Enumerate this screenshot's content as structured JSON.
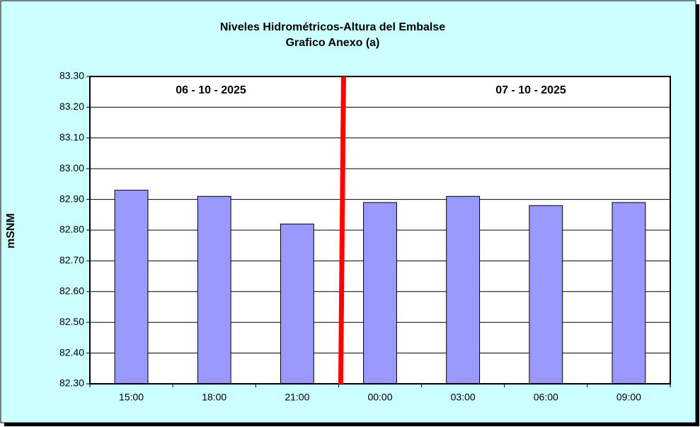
{
  "chart_data": {
    "type": "bar",
    "title": "Niveles Hidrométricos-Altura del Embalse",
    "subtitle": "Grafico Anexo (a)",
    "y_label": "mSNM",
    "annotations": [
      "06 - 10 - 2025",
      "07 - 10 - 2025"
    ],
    "categories": [
      "15:00",
      "18:00",
      "21:00",
      "00:00",
      "03:00",
      "06:00",
      "09:00"
    ],
    "values": [
      82.93,
      82.91,
      82.82,
      82.89,
      82.91,
      82.88,
      82.89
    ],
    "color": "#9999ff",
    "ylim": [
      82.3,
      83.3
    ],
    "yticks": [
      {
        "value": 82.3,
        "label": "82.30"
      },
      {
        "value": 82.4,
        "label": "82.40"
      },
      {
        "value": 82.5,
        "label": "82.50"
      },
      {
        "value": 82.6,
        "label": "82.60"
      },
      {
        "value": 82.7,
        "label": "82.70"
      },
      {
        "value": 82.8,
        "label": "82.80"
      },
      {
        "value": 82.9,
        "label": "82.90"
      },
      {
        "value": 83.0,
        "label": "83.00"
      },
      {
        "value": 83.1,
        "label": "83.10"
      },
      {
        "value": 83.2,
        "label": "83.20"
      },
      {
        "value": 83.3,
        "label": "83.30"
      }
    ],
    "grid": true
  }
}
